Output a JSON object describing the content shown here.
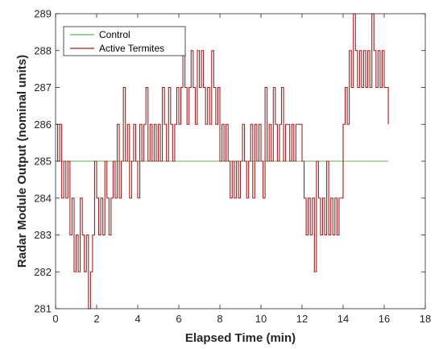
{
  "chart_data": {
    "type": "line",
    "xlabel": "Elapsed Time (min)",
    "ylabel": "Radar Module Output (nominal units)",
    "xlim": [
      0,
      18
    ],
    "ylim": [
      281,
      289
    ],
    "xticks": [
      "0",
      "2",
      "4",
      "6",
      "8",
      "10",
      "12",
      "14",
      "16",
      "18"
    ],
    "yticks": [
      "281",
      "282",
      "283",
      "284",
      "285",
      "286",
      "287",
      "288",
      "289"
    ],
    "grid": false,
    "legend_position": "top-left",
    "series": [
      {
        "name": "Control",
        "color": "#5cb85c",
        "x": [
          0,
          16.2
        ],
        "y": [
          285,
          285
        ]
      },
      {
        "name": "Active Termites",
        "color": "#a51c1c",
        "x": [
          0,
          0.1,
          0.2,
          0.3,
          0.4,
          0.5,
          0.6,
          0.7,
          0.8,
          0.9,
          1.0,
          1.1,
          1.2,
          1.3,
          1.4,
          1.5,
          1.6,
          1.7,
          1.8,
          1.9,
          2.0,
          2.1,
          2.2,
          2.3,
          2.4,
          2.5,
          2.6,
          2.7,
          2.8,
          2.9,
          3.0,
          3.1,
          3.2,
          3.3,
          3.4,
          3.5,
          3.6,
          3.7,
          3.8,
          3.9,
          4.0,
          4.1,
          4.2,
          4.3,
          4.4,
          4.5,
          4.6,
          4.7,
          4.8,
          4.9,
          5.0,
          5.1,
          5.2,
          5.3,
          5.4,
          5.5,
          5.6,
          5.7,
          5.8,
          5.9,
          6.0,
          6.1,
          6.2,
          6.3,
          6.4,
          6.5,
          6.6,
          6.7,
          6.8,
          6.9,
          7.0,
          7.1,
          7.2,
          7.3,
          7.4,
          7.5,
          7.6,
          7.7,
          7.8,
          7.9,
          8.0,
          8.1,
          8.2,
          8.3,
          8.4,
          8.5,
          8.6,
          8.7,
          8.8,
          8.9,
          9.0,
          9.1,
          9.2,
          9.3,
          9.4,
          9.5,
          9.6,
          9.7,
          9.8,
          9.9,
          10.0,
          10.1,
          10.2,
          10.3,
          10.4,
          10.5,
          10.6,
          10.7,
          10.8,
          10.9,
          11.0,
          11.1,
          11.2,
          11.3,
          11.4,
          11.5,
          11.6,
          11.7,
          11.8,
          11.9,
          12.0,
          12.1,
          12.2,
          12.3,
          12.4,
          12.5,
          12.6,
          12.7,
          12.8,
          12.9,
          13.0,
          13.1,
          13.2,
          13.3,
          13.4,
          13.5,
          13.6,
          13.7,
          13.8,
          13.9,
          14.0,
          14.1,
          14.2,
          14.3,
          14.4,
          14.5,
          14.6,
          14.7,
          14.8,
          14.9,
          15.0,
          15.1,
          15.2,
          15.3,
          15.4,
          15.5,
          15.6,
          15.7,
          15.8,
          15.9,
          16.0,
          16.1,
          16.2
        ],
        "y": [
          286,
          285,
          286,
          284,
          285,
          284,
          285,
          283,
          284,
          282,
          283,
          282,
          284,
          283,
          282,
          283,
          281,
          282,
          283,
          285,
          284,
          283,
          284,
          283,
          285,
          284,
          283,
          284,
          285,
          284,
          286,
          284,
          285,
          287,
          285,
          286,
          284,
          285,
          286,
          285,
          284,
          286,
          285,
          286,
          287,
          285,
          286,
          285,
          286,
          285,
          286,
          285,
          287,
          286,
          285,
          287,
          286,
          285,
          286,
          287,
          286,
          287,
          288,
          287,
          286,
          287,
          288,
          287,
          286,
          288,
          287,
          288,
          287,
          286,
          287,
          286,
          288,
          287,
          286,
          287,
          285,
          286,
          285,
          286,
          285,
          284,
          285,
          284,
          285,
          284,
          285,
          286,
          285,
          284,
          285,
          286,
          284,
          286,
          285,
          286,
          285,
          284,
          287,
          285,
          286,
          285,
          287,
          286,
          285,
          286,
          287,
          285,
          286,
          286,
          285,
          286,
          285,
          286,
          286,
          286,
          285,
          284,
          283,
          284,
          283,
          284,
          282,
          285,
          284,
          283,
          284,
          283,
          285,
          283,
          284,
          283,
          284,
          283,
          284,
          284,
          286,
          287,
          286,
          288,
          287,
          289,
          288,
          287,
          288,
          287,
          288,
          287,
          288,
          287,
          289,
          288,
          287,
          288,
          287,
          288,
          287,
          287,
          286
        ]
      }
    ]
  }
}
